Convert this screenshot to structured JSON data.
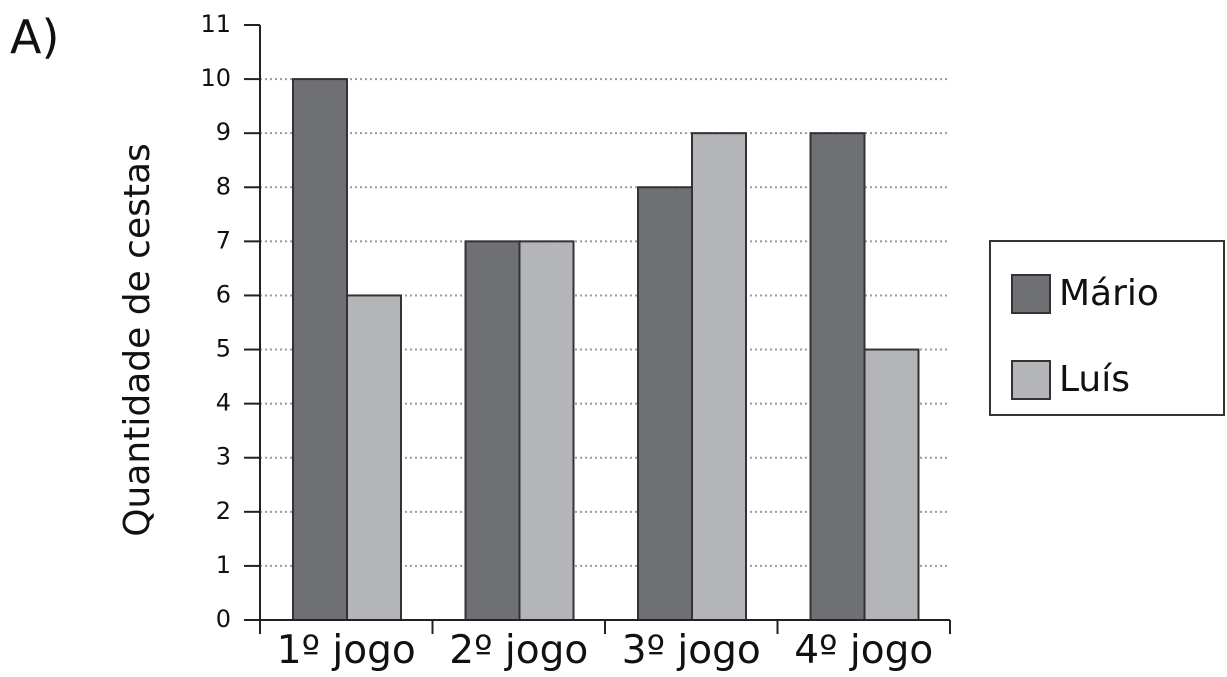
{
  "panel_label": "A)",
  "chart_data": {
    "type": "bar",
    "categories": [
      "1º jogo",
      "2º jogo",
      "3º jogo",
      "4º jogo"
    ],
    "series": [
      {
        "name": "Mário",
        "values": [
          10,
          7,
          8,
          9
        ],
        "color": "#6f7074"
      },
      {
        "name": "Luís",
        "values": [
          6,
          7,
          9,
          5
        ],
        "color": "#b3b5b8"
      }
    ],
    "ylabel": "Quantidade de cestas",
    "ylim": [
      0,
      11
    ],
    "yticks": [
      "0",
      "1",
      "2",
      "3",
      "4",
      "5",
      "6",
      "7",
      "8",
      "9",
      "10",
      "11"
    ],
    "grid": true,
    "legend_position": "right"
  }
}
